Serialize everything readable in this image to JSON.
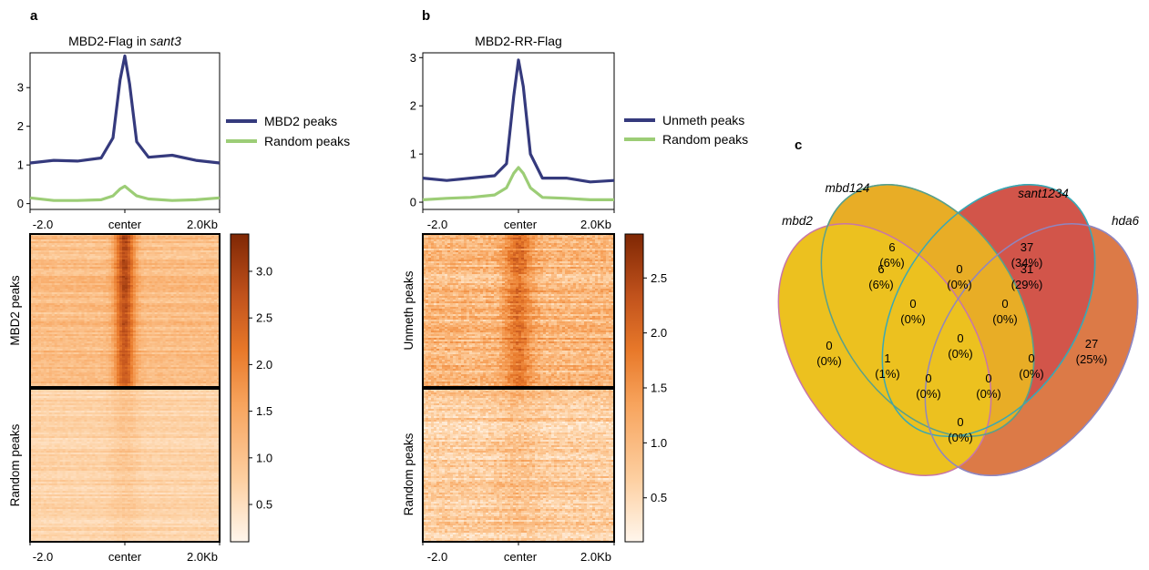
{
  "figure": {
    "panel_labels": [
      "a",
      "b",
      "c"
    ],
    "panel_a": {
      "title_prefix": "MBD2-Flag in ",
      "title_italic": "sant3",
      "legend": [
        "MBD2 peaks",
        "Random peaks"
      ],
      "heatmap_row_labels": [
        "MBD2 peaks",
        "Random peaks"
      ],
      "colorbar_ticks": [
        "0.5",
        "1.0",
        "1.5",
        "2.0",
        "2.5",
        "3.0"
      ]
    },
    "panel_b": {
      "title": "MBD2-RR-Flag",
      "legend": [
        "Unmeth peaks",
        "Random peaks"
      ],
      "heatmap_row_labels": [
        "Unmeth peaks",
        "Random peaks"
      ],
      "colorbar_ticks": [
        "0.5",
        "1.0",
        "1.5",
        "2.0",
        "2.5"
      ]
    },
    "xticks": [
      "-2.0",
      "center",
      "2.0Kb"
    ],
    "series_colors": {
      "primary": "#353a7d",
      "random": "#9ccd76"
    },
    "heatmap_colormap": [
      "#fff6ec",
      "#fdd0a2",
      "#f7a35c",
      "#e8792a",
      "#c1521c",
      "#7f2704"
    ],
    "venn": {
      "sets": [
        "mbd2",
        "mbd124",
        "sant1234",
        "hda6"
      ],
      "regions": [
        {
          "sets": "mbd124 only",
          "count": "6",
          "pct": "(6%)"
        },
        {
          "sets": "sant1234 only",
          "count": "37",
          "pct": "(34%)"
        },
        {
          "sets": "hda6 only",
          "count": "27",
          "pct": "(25%)"
        },
        {
          "sets": "mbd2 only",
          "count": "0",
          "pct": "(0%)"
        },
        {
          "sets": "mbd2 & mbd124",
          "count": "6",
          "pct": "(6%)"
        },
        {
          "sets": "mbd124 & sant1234",
          "count": "0",
          "pct": "(0%)"
        },
        {
          "sets": "sant1234 & hda6",
          "count": "31",
          "pct": "(29%)"
        },
        {
          "sets": "mbd2 & mbd124 & sant1234",
          "count": "0",
          "pct": "(0%)"
        },
        {
          "sets": "mbd124 & sant1234 & hda6",
          "count": "0",
          "pct": "(0%)"
        },
        {
          "sets": "all four",
          "count": "0",
          "pct": "(0%)"
        },
        {
          "sets": "mbd2 & sant1234",
          "count": "1",
          "pct": "(1%)"
        },
        {
          "sets": "mbd124 & hda6",
          "count": "0",
          "pct": "(0%)"
        },
        {
          "sets": "mbd2 & sant1234 & hda6",
          "count": "0",
          "pct": "(0%)"
        },
        {
          "sets": "mbd2 & mbd124 & hda6",
          "count": "0",
          "pct": "(0%)"
        },
        {
          "sets": "mbd2 & hda6",
          "count": "0",
          "pct": "(0%)"
        }
      ],
      "colors": {
        "mbd2": "#ecc11f",
        "mbd124": "#e8ad26",
        "sant1234": "#d2554a",
        "hda6": "#dc7a47"
      }
    }
  },
  "chart_data": [
    {
      "type": "line",
      "panel": "a",
      "title": "MBD2-Flag in sant3",
      "x": [
        -2.0,
        -1.5,
        -1.0,
        -0.5,
        -0.25,
        -0.1,
        0.0,
        0.1,
        0.25,
        0.5,
        1.0,
        1.5,
        2.0
      ],
      "xlabel": "",
      "ylabel": "",
      "ylim": [
        0,
        3.8
      ],
      "series": [
        {
          "name": "MBD2 peaks",
          "values": [
            1.05,
            1.12,
            1.1,
            1.18,
            1.7,
            3.2,
            3.82,
            3.1,
            1.6,
            1.2,
            1.25,
            1.12,
            1.05
          ]
        },
        {
          "name": "Random peaks",
          "values": [
            0.15,
            0.08,
            0.08,
            0.1,
            0.2,
            0.38,
            0.45,
            0.35,
            0.2,
            0.12,
            0.08,
            0.1,
            0.15
          ]
        }
      ]
    },
    {
      "type": "line",
      "panel": "b",
      "title": "MBD2-RR-Flag",
      "x": [
        -2.0,
        -1.5,
        -1.0,
        -0.5,
        -0.25,
        -0.1,
        0.0,
        0.1,
        0.25,
        0.5,
        1.0,
        1.5,
        2.0
      ],
      "xlabel": "",
      "ylabel": "",
      "ylim": [
        0,
        3.0
      ],
      "series": [
        {
          "name": "Unmeth peaks",
          "values": [
            0.5,
            0.45,
            0.5,
            0.55,
            0.8,
            2.2,
            2.95,
            2.4,
            1.0,
            0.5,
            0.5,
            0.42,
            0.45
          ]
        },
        {
          "name": "Random peaks",
          "values": [
            0.05,
            0.08,
            0.1,
            0.15,
            0.3,
            0.6,
            0.72,
            0.6,
            0.3,
            0.1,
            0.08,
            0.05,
            0.05
          ]
        }
      ]
    },
    {
      "type": "heatmap",
      "panel": "a",
      "rows": [
        "MBD2 peaks",
        "Random peaks"
      ],
      "columns": [
        "-2.0",
        "center",
        "2.0Kb"
      ],
      "colorbar_range": [
        0.1,
        3.4
      ]
    },
    {
      "type": "heatmap",
      "panel": "b",
      "rows": [
        "Unmeth peaks",
        "Random peaks"
      ],
      "columns": [
        "-2.0",
        "center",
        "2.0Kb"
      ],
      "colorbar_range": [
        0.1,
        2.9
      ]
    }
  ]
}
